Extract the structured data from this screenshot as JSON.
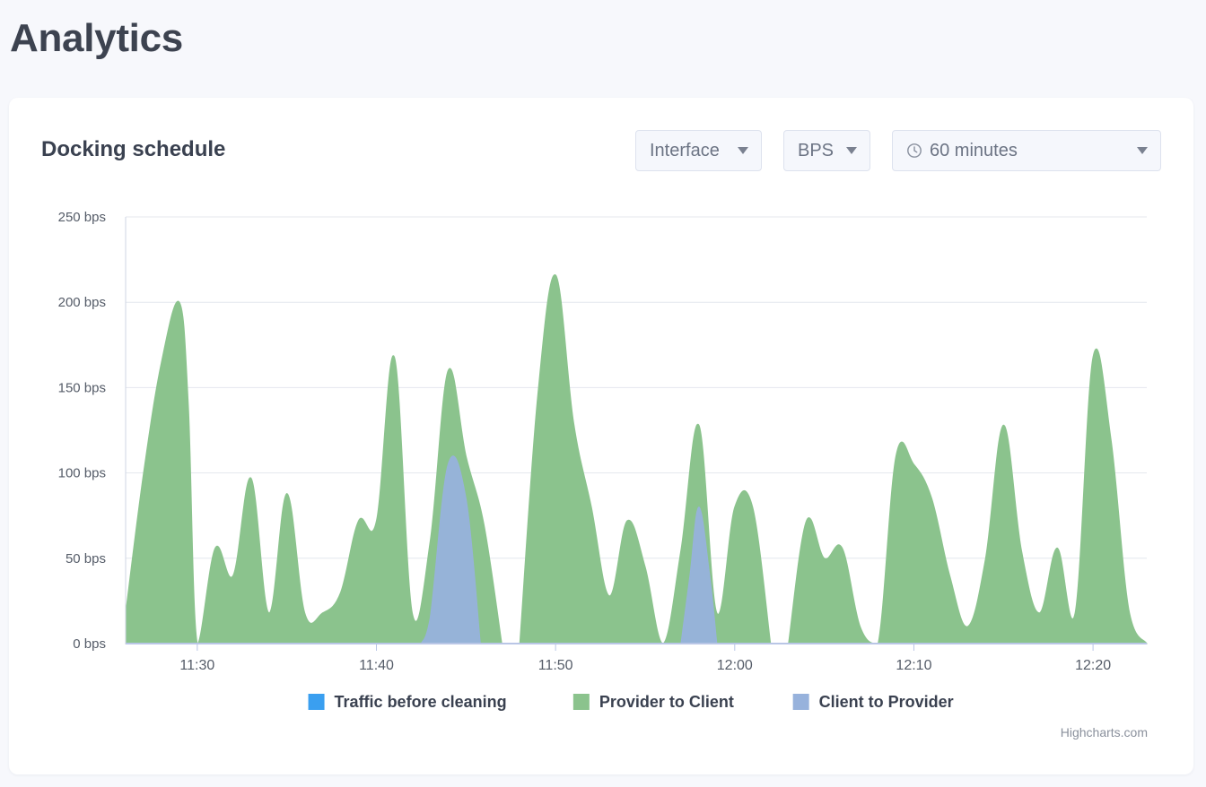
{
  "page": {
    "title": "Analytics"
  },
  "card": {
    "title": "Docking schedule",
    "controls": {
      "interface": {
        "value": "Interface",
        "icon": "chevron-down-icon"
      },
      "unit": {
        "value": "BPS",
        "icon": "chevron-down-icon"
      },
      "range": {
        "value": "60 minutes",
        "icon": "clock-icon"
      }
    },
    "credits": "Highcharts.com"
  },
  "chart_data": {
    "type": "area",
    "title": "Docking schedule",
    "xlabel": "",
    "ylabel": "",
    "x_range": [
      "11:26",
      "12:23"
    ],
    "ylim": [
      0,
      250
    ],
    "y_ticks": [
      "0 bps",
      "50 bps",
      "100 bps",
      "150 bps",
      "200 bps",
      "250 bps"
    ],
    "y_tick_values": [
      0,
      50,
      100,
      150,
      200,
      250
    ],
    "x_ticks": [
      "11:30",
      "11:40",
      "11:50",
      "12:00",
      "12:10",
      "12:20"
    ],
    "grid": true,
    "legend_position": "bottom-center",
    "series": [
      {
        "name": "Traffic before cleaning",
        "color": "#3a9ff0",
        "points": [
          [
            "11:26",
            0
          ],
          [
            "12:23",
            0
          ]
        ]
      },
      {
        "name": "Provider to Client",
        "color": "#8bc38d",
        "points": [
          [
            "11:26",
            18
          ],
          [
            "11:27",
            100
          ],
          [
            "11:28",
            165
          ],
          [
            "11:29",
            200
          ],
          [
            "11:29.5",
            140
          ],
          [
            "11:30",
            0
          ],
          [
            "11:31",
            56
          ],
          [
            "11:32",
            40
          ],
          [
            "11:33",
            97
          ],
          [
            "11:34",
            18
          ],
          [
            "11:35",
            88
          ],
          [
            "11:36",
            18
          ],
          [
            "11:37",
            18
          ],
          [
            "11:38",
            30
          ],
          [
            "11:39",
            72
          ],
          [
            "11:40",
            72
          ],
          [
            "11:41",
            168
          ],
          [
            "11:42",
            18
          ],
          [
            "11:43",
            60
          ],
          [
            "11:44",
            160
          ],
          [
            "11:45",
            110
          ],
          [
            "11:46",
            70
          ],
          [
            "11:47",
            0
          ],
          [
            "11:48",
            0
          ],
          [
            "11:49",
            145
          ],
          [
            "11:50",
            216
          ],
          [
            "11:51",
            130
          ],
          [
            "11:52",
            80
          ],
          [
            "11:53",
            28
          ],
          [
            "11:54",
            72
          ],
          [
            "11:55",
            45
          ],
          [
            "11:56",
            0
          ],
          [
            "11:57",
            55
          ],
          [
            "11:58",
            128
          ],
          [
            "11:59",
            18
          ],
          [
            "12:00",
            80
          ],
          [
            "12:01",
            80
          ],
          [
            "12:02",
            0
          ],
          [
            "12:03",
            0
          ],
          [
            "12:04",
            72
          ],
          [
            "12:05",
            50
          ],
          [
            "12:06",
            56
          ],
          [
            "12:07",
            10
          ],
          [
            "12:08",
            0
          ],
          [
            "12:09",
            110
          ],
          [
            "12:10",
            105
          ],
          [
            "12:11",
            85
          ],
          [
            "12:12",
            40
          ],
          [
            "12:13",
            10
          ],
          [
            "12:14",
            50
          ],
          [
            "12:15",
            128
          ],
          [
            "12:16",
            55
          ],
          [
            "12:17",
            18
          ],
          [
            "12:18",
            56
          ],
          [
            "12:19",
            18
          ],
          [
            "12:20",
            168
          ],
          [
            "12:21",
            120
          ],
          [
            "12:22",
            20
          ],
          [
            "12:23",
            0
          ]
        ]
      },
      {
        "name": "Client to Provider",
        "color": "#97b2dc",
        "points": [
          [
            "11:42.5",
            0
          ],
          [
            "11:43",
            15
          ],
          [
            "11:44",
            105
          ],
          [
            "11:45",
            85
          ],
          [
            "11:45.8",
            0
          ],
          [
            "11:57",
            0
          ],
          [
            "11:57.5",
            40
          ],
          [
            "11:58",
            80
          ],
          [
            "11:58.6",
            40
          ],
          [
            "11:59",
            0
          ]
        ]
      }
    ]
  }
}
